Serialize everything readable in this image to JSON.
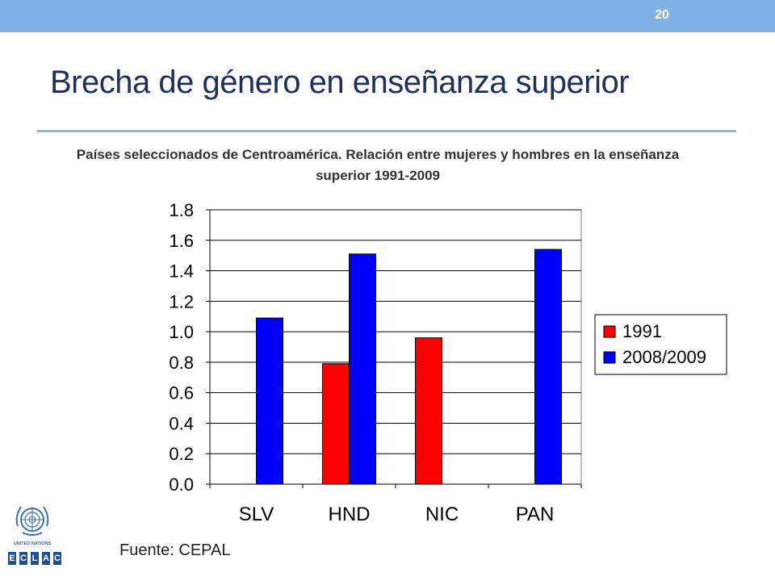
{
  "slide": {
    "page_number": "20",
    "title": "Brecha de género en enseñanza superior",
    "subtitle": "Países seleccionados de Centroamérica. Relación entre mujeres y hombres en la enseñanza  superior 1991-2009",
    "source": "Fuente: CEPAL"
  },
  "logo": {
    "un_text": "UNITED NATIONS",
    "eclac_letters": [
      "E",
      "C",
      "L",
      "A",
      "C"
    ]
  },
  "chart_data": {
    "type": "bar",
    "title": "",
    "xlabel": "",
    "ylabel": "",
    "categories": [
      "SLV",
      "HND",
      "NIC",
      "PAN"
    ],
    "series": [
      {
        "name": "1991",
        "color": "#ff0000",
        "values": [
          null,
          0.79,
          0.96,
          null
        ]
      },
      {
        "name": "2008/2009",
        "color": "#0000ff",
        "values": [
          1.09,
          1.51,
          null,
          1.54
        ]
      }
    ],
    "ylim": [
      0,
      1.8
    ],
    "yticks": [
      "0.0",
      "0.2",
      "0.4",
      "0.6",
      "0.8",
      "1.0",
      "1.2",
      "1.4",
      "1.6",
      "1.8"
    ],
    "grid": true,
    "legend_position": "right"
  }
}
